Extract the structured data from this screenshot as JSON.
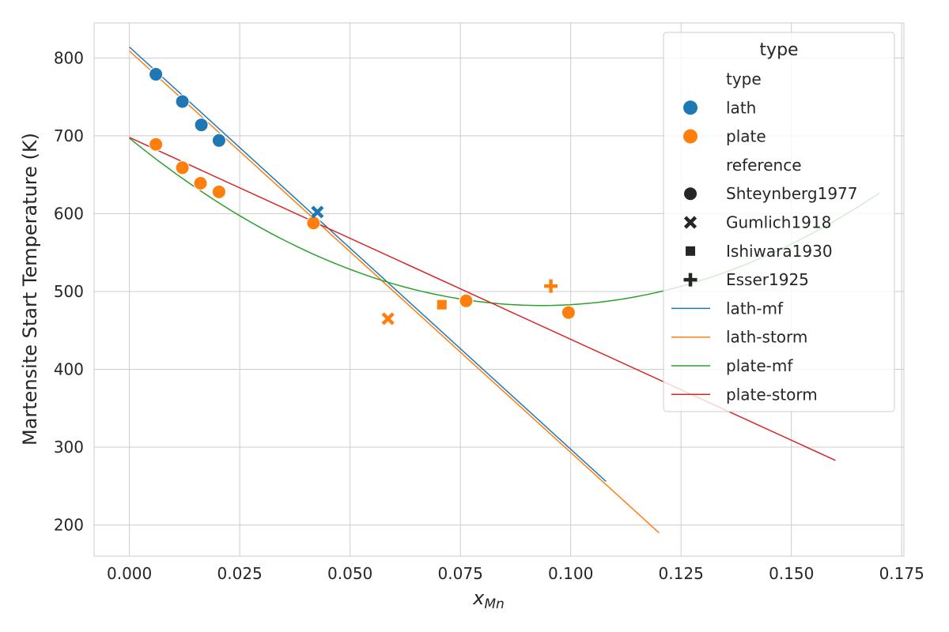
{
  "chart_data": {
    "type": "scatter",
    "title": "",
    "xlabel_main": "x",
    "xlabel_sub": "Mn",
    "ylabel": "Martensite Start Temperature (K)",
    "xlim": [
      -0.008,
      0.1755
    ],
    "ylim": [
      160,
      845
    ],
    "x_ticks": [
      "0.000",
      "0.025",
      "0.050",
      "0.075",
      "0.100",
      "0.125",
      "0.150",
      "0.175"
    ],
    "x_tick_values": [
      0,
      0.025,
      0.05,
      0.075,
      0.1,
      0.125,
      0.15,
      0.175
    ],
    "y_ticks": [
      "200",
      "300",
      "400",
      "500",
      "600",
      "700",
      "800"
    ],
    "y_tick_values": [
      200,
      300,
      400,
      500,
      600,
      700,
      800
    ],
    "grid": true,
    "colors": {
      "lath": "#1f77b4",
      "plate": "#ff7f0e",
      "plate_mf": "#2ca02c",
      "plate_storm": "#d62728"
    },
    "points": [
      {
        "x": 0.006,
        "y": 779,
        "type": "lath",
        "reference": "Shteynberg1977"
      },
      {
        "x": 0.012,
        "y": 744,
        "type": "lath",
        "reference": "Shteynberg1977"
      },
      {
        "x": 0.0163,
        "y": 714,
        "type": "lath",
        "reference": "Shteynberg1977"
      },
      {
        "x": 0.0203,
        "y": 694,
        "type": "lath",
        "reference": "Shteynberg1977"
      },
      {
        "x": 0.006,
        "y": 689,
        "type": "plate",
        "reference": "Shteynberg1977"
      },
      {
        "x": 0.012,
        "y": 659,
        "type": "plate",
        "reference": "Shteynberg1977"
      },
      {
        "x": 0.0161,
        "y": 639,
        "type": "plate",
        "reference": "Shteynberg1977"
      },
      {
        "x": 0.0203,
        "y": 628,
        "type": "plate",
        "reference": "Shteynberg1977"
      },
      {
        "x": 0.0417,
        "y": 588,
        "type": "plate",
        "reference": "Shteynberg1977"
      },
      {
        "x": 0.0763,
        "y": 488,
        "type": "plate",
        "reference": "Shteynberg1977"
      },
      {
        "x": 0.0995,
        "y": 473,
        "type": "plate",
        "reference": "Shteynberg1977"
      },
      {
        "x": 0.0426,
        "y": 602,
        "type": "lath",
        "reference": "Gumlich1918"
      },
      {
        "x": 0.0586,
        "y": 465,
        "type": "plate",
        "reference": "Gumlich1918"
      },
      {
        "x": 0.0708,
        "y": 483,
        "type": "plate",
        "reference": "Ishiwara1930"
      },
      {
        "x": 0.0955,
        "y": 507,
        "type": "plate",
        "reference": "Esser1925"
      }
    ],
    "lines": [
      {
        "name": "lath-mf",
        "color": "#1f77b4",
        "x": [
          0,
          0.108
        ],
        "y": [
          814,
          256
        ]
      },
      {
        "name": "lath-storm",
        "color": "#ff7f0e",
        "x": [
          0,
          0.12
        ],
        "y": [
          809,
          190
        ]
      },
      {
        "name": "plate-mf",
        "color": "#2ca02c",
        "x": [
          0,
          0.0934,
          0.17
        ],
        "y": [
          697,
          482,
          632
        ],
        "curve": "quadratic"
      },
      {
        "name": "plate-storm",
        "color": "#d62728",
        "x": [
          0,
          0.16
        ],
        "y": [
          698,
          283
        ]
      }
    ],
    "legend": {
      "placement": "top-right",
      "title": "type",
      "hue_header": "type",
      "hue_items": [
        {
          "label": "lath",
          "color": "#1f77b4"
        },
        {
          "label": "plate",
          "color": "#ff7f0e"
        }
      ],
      "style_header": "reference",
      "style_items": [
        {
          "label": "Shteynberg1977",
          "marker": "circle"
        },
        {
          "label": "Gumlich1918",
          "marker": "x"
        },
        {
          "label": "Ishiwara1930",
          "marker": "square"
        },
        {
          "label": "Esser1925",
          "marker": "plus"
        }
      ],
      "line_items": [
        {
          "label": "lath-mf",
          "color": "#1f77b4"
        },
        {
          "label": "lath-storm",
          "color": "#ff7f0e"
        },
        {
          "label": "plate-mf",
          "color": "#2ca02c"
        },
        {
          "label": "plate-storm",
          "color": "#d62728"
        }
      ]
    }
  }
}
